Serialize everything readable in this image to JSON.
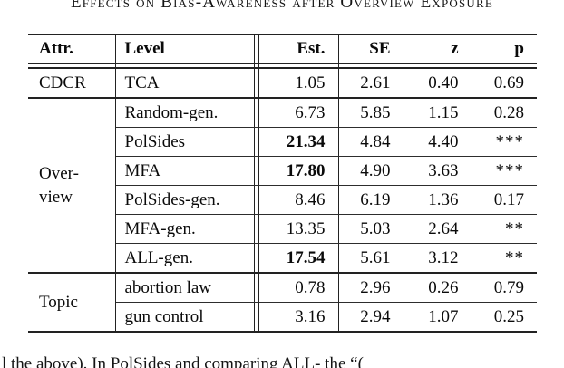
{
  "page": {
    "caption": "Effects on Bias-Awareness after Overview Exposure",
    "body_text_fragment": "l the above). In PolSides and comparing ALL- the “("
  },
  "table": {
    "columns": [
      "Attr.",
      "Level",
      "Est.",
      "SE",
      "z",
      "p"
    ],
    "groups": [
      {
        "attr_line1": "CDCR",
        "rows": [
          {
            "level": "TCA",
            "est": "1.05",
            "se": "2.61",
            "z": "0.40",
            "p": "0.69",
            "est_bold": false
          }
        ]
      },
      {
        "attr_line1": "Over-",
        "attr_line2": "view",
        "rows": [
          {
            "level": "Random-gen.",
            "est": "6.73",
            "se": "5.85",
            "z": "1.15",
            "p": "0.28",
            "est_bold": false
          },
          {
            "level": "PolSides",
            "est": "21.34",
            "se": "4.84",
            "z": "4.40",
            "p": "***",
            "est_bold": true
          },
          {
            "level": "MFA",
            "est": "17.80",
            "se": "4.90",
            "z": "3.63",
            "p": "***",
            "est_bold": true
          },
          {
            "level": "PolSides-gen.",
            "est": "8.46",
            "se": "6.19",
            "z": "1.36",
            "p": "0.17",
            "est_bold": false
          },
          {
            "level": "MFA-gen.",
            "est": "13.35",
            "se": "5.03",
            "z": "2.64",
            "p": "**",
            "est_bold": false
          },
          {
            "level": "ALL-gen.",
            "est": "17.54",
            "se": "5.61",
            "z": "3.12",
            "p": "**",
            "est_bold": true
          }
        ]
      },
      {
        "attr_line1": "Topic",
        "rows": [
          {
            "level": "abortion law",
            "est": "0.78",
            "se": "2.96",
            "z": "0.26",
            "p": "0.79",
            "est_bold": false
          },
          {
            "level": "gun control",
            "est": "3.16",
            "se": "2.94",
            "z": "1.07",
            "p": "0.25",
            "est_bold": false
          }
        ]
      }
    ]
  },
  "colors": {
    "text": "#0a0a0a",
    "background": "#ffffff",
    "rule": "#222222"
  }
}
